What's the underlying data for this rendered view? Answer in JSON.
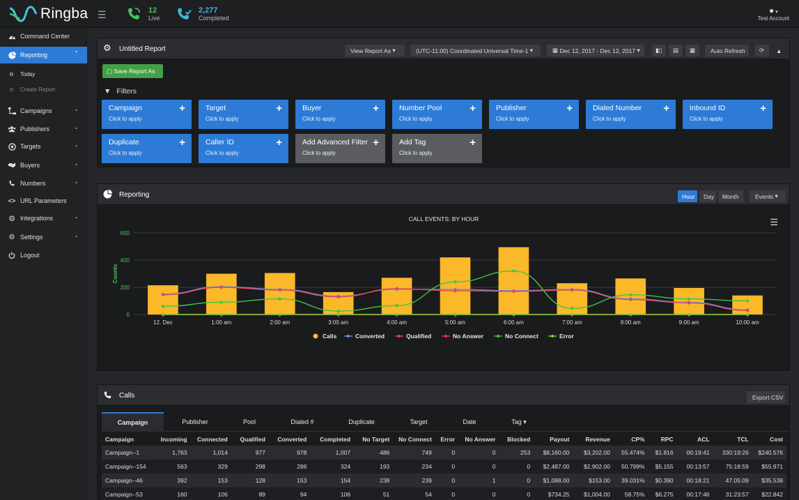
{
  "app": {
    "name": "Ringba"
  },
  "topbar": {
    "live": {
      "count": "12",
      "label": "Live"
    },
    "completed": {
      "count": "2,277",
      "label": "Completed"
    },
    "account": "Test Account"
  },
  "sidebar": {
    "items": [
      {
        "label": "Command Center",
        "icon": "dashboard-icon"
      },
      {
        "label": "Reporting",
        "icon": "pie-chart-icon",
        "active": true
      },
      {
        "label": "Campaigns",
        "icon": "sitemap-icon"
      },
      {
        "label": "Publishers",
        "icon": "users-icon"
      },
      {
        "label": "Targets",
        "icon": "target-icon"
      },
      {
        "label": "Buyers",
        "icon": "handshake-icon"
      },
      {
        "label": "Numbers",
        "icon": "phone-icon"
      },
      {
        "label": "URL Parameters",
        "icon": "code-icon"
      },
      {
        "label": "Integrations",
        "icon": "cogs-icon"
      },
      {
        "label": "Settings",
        "icon": "gear-icon"
      },
      {
        "label": "Logout",
        "icon": "power-icon"
      }
    ],
    "sub": [
      {
        "label": "Today"
      },
      {
        "label": "Create Report"
      }
    ]
  },
  "report": {
    "title": "Untitled Report",
    "view_as": "View Report As",
    "timezone": "(UTC-11:00) Coordinated Universal Time-1",
    "date_range": "Dec 12, 2017 - Dec 12, 2017",
    "auto_refresh": "Auto Refresh",
    "save_as": "Save Report As",
    "filters_title": "Filters",
    "filters": [
      {
        "label": "Campaign",
        "sub": "Click to apply"
      },
      {
        "label": "Target",
        "sub": "Click to apply"
      },
      {
        "label": "Buyer",
        "sub": "Click to apply"
      },
      {
        "label": "Number Pool",
        "sub": "Click to apply"
      },
      {
        "label": "Publisher",
        "sub": "Click to apply"
      },
      {
        "label": "Dialed Number",
        "sub": "Click to apply"
      },
      {
        "label": "Inbound ID",
        "sub": "Click to apply"
      },
      {
        "label": "Duplicate",
        "sub": "Click to apply"
      },
      {
        "label": "Caller ID",
        "sub": "Click to apply"
      },
      {
        "label": "Add Advanced Filter",
        "sub": "Click to apply"
      },
      {
        "label": "Add Tag",
        "sub": "Click to apply"
      }
    ]
  },
  "reporting": {
    "title": "Reporting",
    "hour": "Hour",
    "day": "Day",
    "month": "Month",
    "events": "Events"
  },
  "chart_data": {
    "type": "bar",
    "title": "CALL EVENTS: BY HOUR",
    "ylabel": "Counts",
    "ylim": [
      0,
      600
    ],
    "yticks": [
      0,
      200,
      400,
      600
    ],
    "categories": [
      "12. Dec",
      "1:00 am",
      "2:00 am",
      "3:00 am",
      "4:00 am",
      "5:00 am",
      "6:00 am",
      "7:00 am",
      "8:00 am",
      "9:00 am",
      "10:00 am"
    ],
    "legend_position": "bottom",
    "grid": true,
    "series": [
      {
        "name": "Calls",
        "kind": "bar",
        "color": "#fbb829",
        "values": [
          215,
          300,
          305,
          165,
          270,
          420,
          495,
          230,
          265,
          195,
          140
        ]
      },
      {
        "name": "Converted",
        "kind": "line",
        "color": "#6b8fd6",
        "values": [
          150,
          205,
          185,
          135,
          185,
          185,
          175,
          185,
          115,
          90,
          35
        ]
      },
      {
        "name": "Qualified",
        "kind": "line",
        "color": "#e0455a",
        "values": [
          145,
          200,
          180,
          130,
          190,
          175,
          170,
          180,
          110,
          85,
          30
        ]
      },
      {
        "name": "No Answer",
        "kind": "line",
        "color": "#ee2d6a",
        "values": [
          0,
          0,
          0,
          0,
          0,
          0,
          0,
          0,
          0,
          0,
          0
        ]
      },
      {
        "name": "No Connect",
        "kind": "line",
        "color": "#3ec83e",
        "values": [
          60,
          90,
          115,
          25,
          65,
          240,
          320,
          45,
          145,
          115,
          100
        ]
      },
      {
        "name": "Error",
        "kind": "line",
        "color": "#7fd23c",
        "values": [
          0,
          0,
          0,
          0,
          0,
          0,
          0,
          0,
          0,
          0,
          0
        ]
      }
    ]
  },
  "calls": {
    "title": "Calls",
    "export": "Export CSV",
    "tabs": [
      "Campaign",
      "Publisher",
      "Pool",
      "Dialed #",
      "Duplicate",
      "Target",
      "Date",
      "Tag"
    ],
    "columns": [
      "Campaign",
      "Incoming",
      "Connected",
      "Qualified",
      "Converted",
      "Completed",
      "No Target",
      "No Connect",
      "Error",
      "No Answer",
      "Blocked",
      "Payout",
      "Revenue",
      "CP%",
      "RPC",
      "ACL",
      "TCL",
      "Cost"
    ],
    "rows": [
      [
        "Campaign--1",
        "1,763",
        "1,014",
        "977",
        "978",
        "1,007",
        "486",
        "749",
        "0",
        "0",
        "253",
        "$8,160.00",
        "$3,202.00",
        "55.474%",
        "$1.816",
        "00:19:41",
        "330:19:26",
        "$240.576"
      ],
      [
        "Campaign--154",
        "563",
        "329",
        "298",
        "286",
        "324",
        "193",
        "234",
        "0",
        "0",
        "0",
        "$2,487.00",
        "$2,902.00",
        "50.799%",
        "$5.155",
        "00:13:57",
        "75:18:59",
        "$55.971"
      ],
      [
        "Campaign--46",
        "392",
        "153",
        "128",
        "153",
        "154",
        "238",
        "239",
        "0",
        "1",
        "0",
        "$1,088.00",
        "$153.00",
        "39.031%",
        "$0.390",
        "00:18:21",
        "47:05:09",
        "$35.538"
      ],
      [
        "Campaign--53",
        "160",
        "106",
        "89",
        "94",
        "106",
        "51",
        "54",
        "0",
        "0",
        "0",
        "$734.25",
        "$1,004.00",
        "58.75%",
        "$6.275",
        "00:17:46",
        "31:23:57",
        "$22.842"
      ]
    ]
  }
}
